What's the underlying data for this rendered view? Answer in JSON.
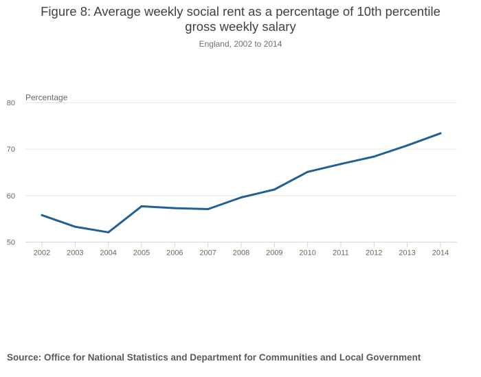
{
  "header": {
    "title_line1": "Figure 8: Average weekly social rent as a percentage of 10th percentile",
    "title_line2": "gross weekly salary",
    "subtitle": "England, 2002 to 2014"
  },
  "footer": {
    "source": "Source: Office for National Statistics and Department for Communities and Local Government"
  },
  "colors": {
    "series": "#206095",
    "grid": "#e6e6e6",
    "axis": "#ccd6eb"
  },
  "chart_data": {
    "type": "line",
    "title": "Figure 8: Average weekly social rent as a percentage of 10th percentile gross weekly salary",
    "subtitle": "England, 2002 to 2014",
    "xlabel": "",
    "ylabel": "Percentage",
    "ylim": [
      50,
      80
    ],
    "yticks": [
      50,
      60,
      70,
      80
    ],
    "grid": true,
    "legend": "none",
    "categories": [
      "2002",
      "2003",
      "2004",
      "2005",
      "2006",
      "2007",
      "2008",
      "2009",
      "2010",
      "2011",
      "2012",
      "2013",
      "2014"
    ],
    "series": [
      {
        "name": "Average weekly social rent as % of 10th percentile gross weekly salary",
        "values": [
          55.8,
          53.3,
          52.1,
          57.7,
          57.3,
          57.1,
          59.6,
          61.3,
          65.1,
          66.8,
          68.4,
          70.8,
          73.4
        ]
      }
    ]
  }
}
